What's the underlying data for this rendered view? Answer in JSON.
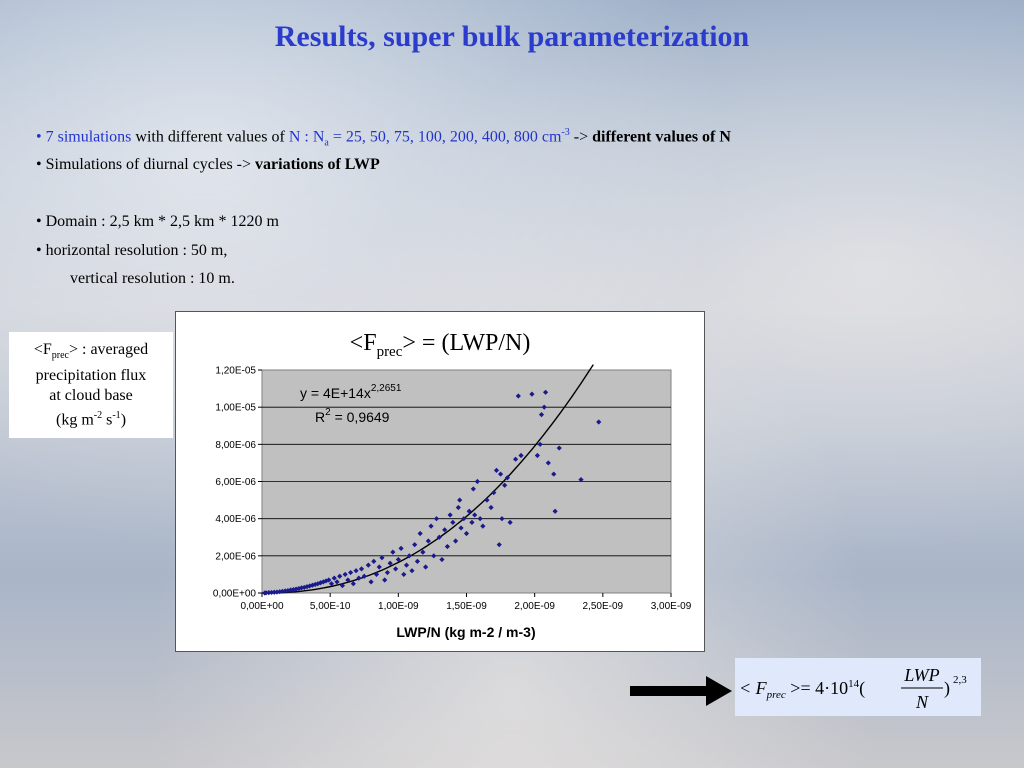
{
  "title": "Results, super bulk parameterization",
  "bullets": {
    "b1_sim": "• 7 simulations",
    "b1_with": " with different values of ",
    "b1_n": "N : N",
    "b1_sub": "a",
    "b1_vals": " = 25, 50, 75, 100, 200, 400, 800 cm",
    "b1_sup": "-3",
    "b1_arrow": " -> ",
    "b1_bold": "different values of N",
    "b2_text": "• Simulations of diurnal cycles -> ",
    "b2_bold": "variations of LWP",
    "b3": "• Domain : 2,5 km * 2,5 km * 1220 m",
    "b4": "• horizontal resolution : 50 m,",
    "b5": "vertical resolution : 10 m."
  },
  "side_label": {
    "open": "<F",
    "sub": "prec",
    "close": "> : averaged",
    "line2": "precipitation flux",
    "line3": "at cloud base",
    "line4_open": "(kg m",
    "line4_sup1": "-2",
    "line4_mid": " s",
    "line4_sup2": "-1",
    "line4_close": ")"
  },
  "formula": {
    "lhs": "< F",
    "sub": "prec",
    "eq": " >= 4·10",
    "exp": "14",
    "paren_open": "(",
    "num": "LWP",
    "den": "N",
    "paren_close": ")",
    "power": "2,3"
  },
  "chart_data": {
    "type": "scatter",
    "title_open": "<F",
    "title_sub": "prec",
    "title_close": "> = (LWP/N)",
    "xlabel": "LWP/N (kg m-2 / m-3)",
    "ylabel": "",
    "xlim": [
      0,
      3e-09
    ],
    "ylim": [
      0,
      1.2e-05
    ],
    "x_ticks": [
      "0,00E+00",
      "5,00E-10",
      "1,00E-09",
      "1,50E-09",
      "2,00E-09",
      "2,50E-09",
      "3,00E-09"
    ],
    "y_ticks": [
      "0,00E+00",
      "2,00E-06",
      "4,00E-06",
      "6,00E-06",
      "8,00E-06",
      "1,00E-05",
      "1,20E-05"
    ],
    "grid": "horizontal",
    "plot_background": "#c0c0c0",
    "marker_color": "#1a1a8c",
    "equation": "y = 4E+14x",
    "equation_exp": "2,2651",
    "r2_label": "R",
    "r2_sup": "2",
    "r2_value": " = 0,9649",
    "trendline": {
      "coef": 400000000000000.0,
      "exponent": 2.2651,
      "x_end": 2.43e-09
    },
    "points": [
      [
        2e-11,
        0
      ],
      [
        3e-11,
        1e-08
      ],
      [
        5e-11,
        2e-08
      ],
      [
        7e-11,
        3e-08
      ],
      [
        9e-11,
        4e-08
      ],
      [
        1.1e-10,
        5e-08
      ],
      [
        1.3e-10,
        7e-08
      ],
      [
        1.5e-10,
        9e-08
      ],
      [
        1.7e-10,
        1.1e-07
      ],
      [
        1.9e-10,
        1.3e-07
      ],
      [
        2.1e-10,
        1.6e-07
      ],
      [
        2.3e-10,
        1.8e-07
      ],
      [
        2.5e-10,
        2.1e-07
      ],
      [
        2.7e-10,
        2.4e-07
      ],
      [
        2.9e-10,
        2.8e-07
      ],
      [
        3.1e-10,
        3e-07
      ],
      [
        3.3e-10,
        3.4e-07
      ],
      [
        3.5e-10,
        3.8e-07
      ],
      [
        3.7e-10,
        4.2e-07
      ],
      [
        3.9e-10,
        4.6e-07
      ],
      [
        4.1e-10,
        5e-07
      ],
      [
        4.3e-10,
        5.5e-07
      ],
      [
        4.5e-10,
        6e-07
      ],
      [
        4.7e-10,
        6.5e-07
      ],
      [
        4.9e-10,
        7e-07
      ],
      [
        5.1e-10,
        5e-07
      ],
      [
        5.3e-10,
        8e-07
      ],
      [
        5.5e-10,
        6e-07
      ],
      [
        5.7e-10,
        9e-07
      ],
      [
        5.9e-10,
        4e-07
      ],
      [
        6.1e-10,
        1e-06
      ],
      [
        6.3e-10,
        7e-07
      ],
      [
        6.5e-10,
        1.1e-06
      ],
      [
        6.7e-10,
        5e-07
      ],
      [
        6.9e-10,
        1.2e-06
      ],
      [
        7.1e-10,
        8e-07
      ],
      [
        7.3e-10,
        1.3e-06
      ],
      [
        7.5e-10,
        9e-07
      ],
      [
        7.8e-10,
        1.5e-06
      ],
      [
        8e-10,
        6e-07
      ],
      [
        8.2e-10,
        1.7e-06
      ],
      [
        8.4e-10,
        1e-06
      ],
      [
        8.6e-10,
        1.4e-06
      ],
      [
        8.8e-10,
        1.9e-06
      ],
      [
        9e-10,
        7e-07
      ],
      [
        9.2e-10,
        1.1e-06
      ],
      [
        9.4e-10,
        1.6e-06
      ],
      [
        9.6e-10,
        2.2e-06
      ],
      [
        9.8e-10,
        1.3e-06
      ],
      [
        1e-09,
        1.8e-06
      ],
      [
        1.02e-09,
        2.4e-06
      ],
      [
        1.04e-09,
        1e-06
      ],
      [
        1.06e-09,
        1.5e-06
      ],
      [
        1.08e-09,
        2e-06
      ],
      [
        1.1e-09,
        1.2e-06
      ],
      [
        1.12e-09,
        2.6e-06
      ],
      [
        1.14e-09,
        1.7e-06
      ],
      [
        1.16e-09,
        3.2e-06
      ],
      [
        1.18e-09,
        2.2e-06
      ],
      [
        1.2e-09,
        1.4e-06
      ],
      [
        1.22e-09,
        2.8e-06
      ],
      [
        1.24e-09,
        3.6e-06
      ],
      [
        1.26e-09,
        2e-06
      ],
      [
        1.28e-09,
        4e-06
      ],
      [
        1.3e-09,
        3e-06
      ],
      [
        1.32e-09,
        1.8e-06
      ],
      [
        1.34e-09,
        3.4e-06
      ],
      [
        1.36e-09,
        2.5e-06
      ],
      [
        1.38e-09,
        4.2e-06
      ],
      [
        1.4e-09,
        3.8e-06
      ],
      [
        1.42e-09,
        2.8e-06
      ],
      [
        1.44e-09,
        4.6e-06
      ],
      [
        1.45e-09,
        5e-06
      ],
      [
        1.46e-09,
        3.5e-06
      ],
      [
        1.48e-09,
        4e-06
      ],
      [
        1.5e-09,
        3.2e-06
      ],
      [
        1.52e-09,
        4.4e-06
      ],
      [
        1.54e-09,
        3.8e-06
      ],
      [
        1.55e-09,
        5.6e-06
      ],
      [
        1.56e-09,
        4.2e-06
      ],
      [
        1.58e-09,
        6e-06
      ],
      [
        1.6e-09,
        4e-06
      ],
      [
        1.62e-09,
        3.6e-06
      ],
      [
        1.65e-09,
        5e-06
      ],
      [
        1.68e-09,
        4.6e-06
      ],
      [
        1.7e-09,
        5.4e-06
      ],
      [
        1.72e-09,
        6.6e-06
      ],
      [
        1.74e-09,
        2.6e-06
      ],
      [
        1.75e-09,
        6.4e-06
      ],
      [
        1.76e-09,
        4e-06
      ],
      [
        1.78e-09,
        5.8e-06
      ],
      [
        1.8e-09,
        6.2e-06
      ],
      [
        1.82e-09,
        3.8e-06
      ],
      [
        1.86e-09,
        7.2e-06
      ],
      [
        1.9e-09,
        7.4e-06
      ],
      [
        1.88e-09,
        1.06e-05
      ],
      [
        1.98e-09,
        1.07e-05
      ],
      [
        2.02e-09,
        7.4e-06
      ],
      [
        2.04e-09,
        8e-06
      ],
      [
        2.05e-09,
        9.6e-06
      ],
      [
        2.07e-09,
        1e-05
      ],
      [
        2.08e-09,
        1.08e-05
      ],
      [
        2.1e-09,
        7e-06
      ],
      [
        2.14e-09,
        6.4e-06
      ],
      [
        2.15e-09,
        4.4e-06
      ],
      [
        2.18e-09,
        7.8e-06
      ],
      [
        2.34e-09,
        6.1e-06
      ],
      [
        2.47e-09,
        9.2e-06
      ]
    ]
  }
}
